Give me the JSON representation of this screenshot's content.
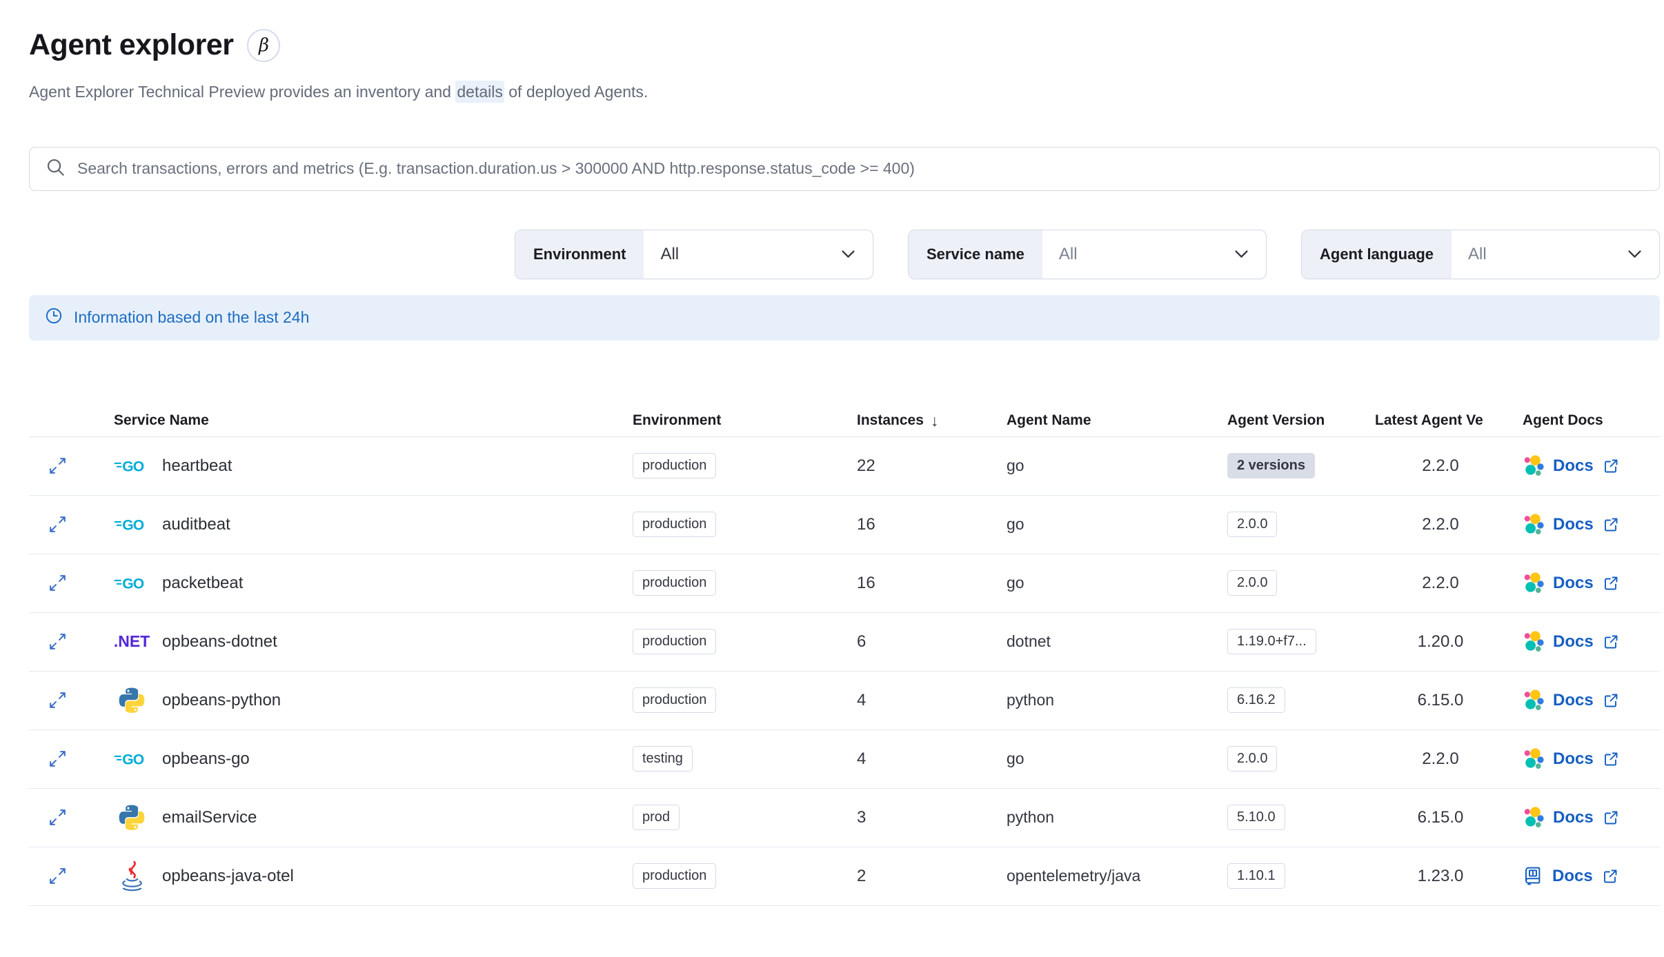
{
  "page": {
    "title": "Agent explorer",
    "beta_badge": "β",
    "subtitle": {
      "pre": "Agent Explorer Technical Preview provides an inventory and ",
      "highlight": "details",
      "post": " of deployed Agents."
    }
  },
  "search": {
    "placeholder": "Search transactions, errors and metrics (E.g. transaction.duration.us > 300000 AND http.response.status_code >= 400)"
  },
  "filters": [
    {
      "label": "Environment",
      "value": "All"
    },
    {
      "label": "Service name",
      "value": "All"
    },
    {
      "label": "Agent language",
      "value": "All"
    }
  ],
  "banner": {
    "text": "Information based on the last 24h"
  },
  "icons": {
    "go_label": "GO",
    "dotnet_label": ".NET"
  },
  "table": {
    "headers": {
      "service_name": "Service Name",
      "environment": "Environment",
      "instances": "Instances",
      "sort_arrow": "↓",
      "agent_name": "Agent Name",
      "agent_version": "Agent Version",
      "latest_agent_version": "Latest Agent Ve",
      "agent_docs": "Agent Docs"
    },
    "docs_label": "Docs",
    "rows": [
      {
        "service": "heartbeat",
        "icon": "go",
        "environment": "production",
        "instances": "22",
        "agent_name": "go",
        "agent_version": "2 versions",
        "version_filled": true,
        "latest_version": "2.2.0",
        "docs_icon": "elastic"
      },
      {
        "service": "auditbeat",
        "icon": "go",
        "environment": "production",
        "instances": "16",
        "agent_name": "go",
        "agent_version": "2.0.0",
        "version_filled": false,
        "latest_version": "2.2.0",
        "docs_icon": "elastic"
      },
      {
        "service": "packetbeat",
        "icon": "go",
        "environment": "production",
        "instances": "16",
        "agent_name": "go",
        "agent_version": "2.0.0",
        "version_filled": false,
        "latest_version": "2.2.0",
        "docs_icon": "elastic"
      },
      {
        "service": "opbeans-dotnet",
        "icon": "dotnet",
        "environment": "production",
        "instances": "6",
        "agent_name": "dotnet",
        "agent_version": "1.19.0+f7...",
        "version_filled": false,
        "latest_version": "1.20.0",
        "docs_icon": "elastic"
      },
      {
        "service": "opbeans-python",
        "icon": "python",
        "environment": "production",
        "instances": "4",
        "agent_name": "python",
        "agent_version": "6.16.2",
        "version_filled": false,
        "latest_version": "6.15.0",
        "docs_icon": "elastic"
      },
      {
        "service": "opbeans-go",
        "icon": "go",
        "environment": "testing",
        "instances": "4",
        "agent_name": "go",
        "agent_version": "2.0.0",
        "version_filled": false,
        "latest_version": "2.2.0",
        "docs_icon": "elastic"
      },
      {
        "service": "emailService",
        "icon": "python",
        "environment": "prod",
        "instances": "3",
        "agent_name": "python",
        "agent_version": "5.10.0",
        "version_filled": false,
        "latest_version": "6.15.0",
        "docs_icon": "elastic"
      },
      {
        "service": "opbeans-java-otel",
        "icon": "java",
        "environment": "production",
        "instances": "2",
        "agent_name": "opentelemetry/java",
        "agent_version": "1.10.1",
        "version_filled": false,
        "latest_version": "1.23.0",
        "docs_icon": "book"
      }
    ]
  },
  "colors": {
    "link_blue": "#155fc2",
    "banner_bg": "#e7f0fa",
    "banner_text": "#1d6cc2",
    "highlight_bg": "#e9f1fb",
    "badge_border": "#d3dae6",
    "badge_filled_bg": "#d9dde7",
    "go_logo": "#00acd7",
    "dotnet_purple": "#5226d9",
    "elastic_yellow": "#fec514",
    "elastic_pink": "#f04e98",
    "elastic_blue": "#2f7de1",
    "elastic_teal": "#00bfb3",
    "elastic_green": "#54b399"
  }
}
